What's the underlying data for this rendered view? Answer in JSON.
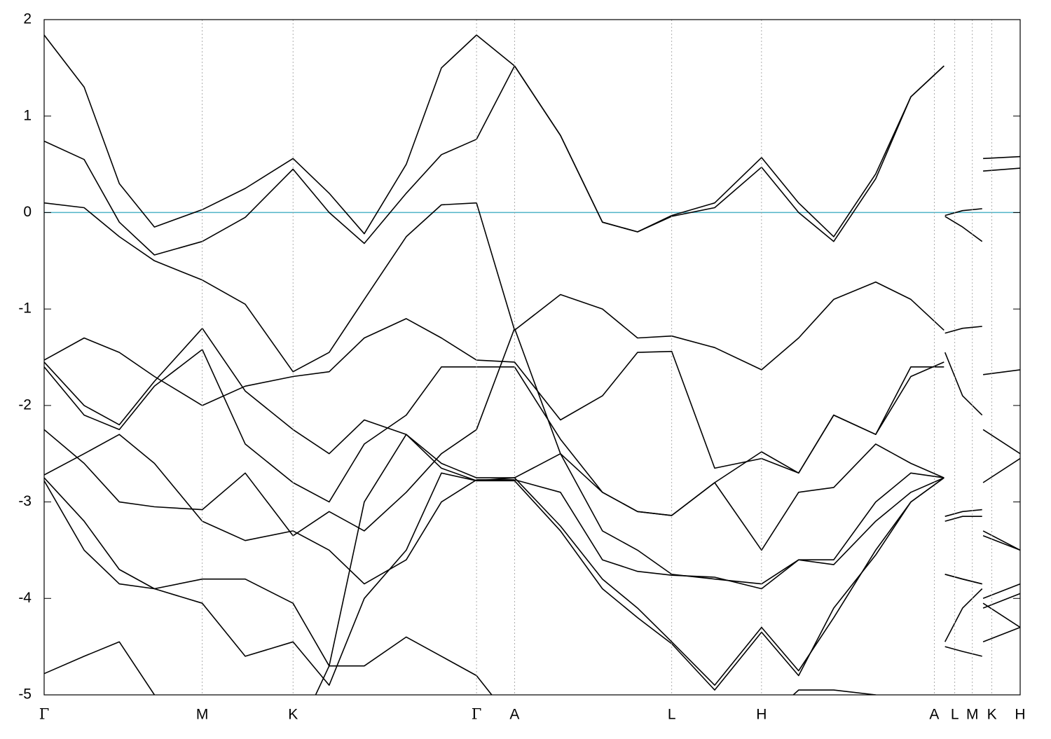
{
  "chart_data": {
    "type": "line",
    "x": [
      0,
      4.1,
      7.7,
      11.3,
      16.2,
      20.6,
      25.5,
      29.2,
      32.8,
      37.1,
      40.7,
      44.3,
      48.2,
      52.9,
      57.2,
      60.8,
      64.3,
      68.7,
      73.5,
      77.3,
      80.9,
      85.2,
      88.8,
      92.2,
      92.2,
      92.3,
      94.1,
      96.1,
      96.2,
      96.2,
      100
    ],
    "series": [
      {
        "color": "#000000",
        "values": [
          1.84,
          1.3,
          0.3,
          -0.15,
          0.03,
          0.25,
          0.56,
          0.2,
          -0.22,
          0.5,
          1.5,
          1.84,
          1.52,
          0.8,
          -0.1,
          -0.2,
          -0.03,
          0.1,
          0.57,
          0.1,
          -0.25,
          0.4,
          1.2,
          1.52,
          null,
          -0.03,
          0.02,
          0.04,
          null,
          0.56,
          0.58
        ]
      },
      {
        "color": "#000000",
        "values": [
          0.74,
          0.55,
          -0.1,
          -0.44,
          -0.3,
          -0.05,
          0.45,
          0.0,
          -0.32,
          0.2,
          0.6,
          0.76,
          1.52,
          0.8,
          -0.1,
          -0.2,
          -0.04,
          0.05,
          0.47,
          0.0,
          -0.3,
          0.35,
          1.2,
          1.52,
          null,
          -0.04,
          -0.15,
          -0.3,
          null,
          0.43,
          0.46
        ]
      },
      {
        "color": "#000000",
        "values": [
          0.1,
          0.05,
          -0.25,
          -0.5,
          -0.7,
          -0.95,
          -1.65,
          -1.45,
          -0.9,
          -0.25,
          0.08,
          0.1,
          -1.22,
          -0.85,
          -1.0,
          -1.3,
          -1.28,
          -1.4,
          -1.63,
          -1.3,
          -0.9,
          -0.72,
          -0.9,
          -1.22,
          null,
          -1.25,
          -1.2,
          -1.18,
          null,
          -1.68,
          -1.63
        ]
      },
      {
        "color": "#000000",
        "values": [
          -1.53,
          -1.3,
          -1.45,
          -1.7,
          -2.0,
          -1.8,
          -1.7,
          -1.65,
          -1.3,
          -1.1,
          -1.3,
          -1.53,
          -1.55,
          -2.15,
          -1.9,
          -1.45,
          -1.44,
          -2.65,
          -2.55,
          -2.7,
          -2.1,
          -2.3,
          -1.7,
          -1.55,
          null,
          -1.45,
          -1.9,
          -2.1,
          null,
          -2.25,
          -2.5
        ]
      },
      {
        "color": "#000000",
        "values": [
          -1.55,
          -2.0,
          -2.2,
          -1.75,
          -1.2,
          -1.85,
          -2.25,
          -2.5,
          -2.15,
          -2.3,
          -2.6,
          -2.75,
          -2.75,
          -2.5,
          -2.9,
          -3.1,
          -3.14,
          -2.8,
          -3.5,
          -2.9,
          -2.85,
          -2.4,
          -2.6,
          -2.75,
          null,
          -3.15,
          -3.1,
          -3.08,
          null,
          -2.8,
          -2.55
        ]
      },
      {
        "color": "#000000",
        "values": [
          -1.6,
          -2.1,
          -2.25,
          -1.8,
          -1.42,
          -2.4,
          -2.8,
          -3.0,
          -2.4,
          -2.1,
          -1.6,
          -1.6,
          -1.6,
          -2.35,
          -2.9,
          -3.1,
          -3.14,
          -2.8,
          -2.48,
          -2.7,
          -2.1,
          -2.3,
          -1.6,
          -1.6,
          null,
          -3.2,
          -3.15,
          -3.15,
          null,
          -3.3,
          -3.5
        ]
      },
      {
        "color": "#000000",
        "values": [
          -2.25,
          -2.6,
          -3.0,
          -3.05,
          -3.08,
          -2.7,
          -3.35,
          -3.1,
          -3.3,
          -2.9,
          -2.5,
          -2.25,
          -1.2,
          -2.5,
          -3.3,
          -3.5,
          -3.75,
          -3.8,
          -3.85,
          -3.6,
          -3.6,
          -3.0,
          -2.7,
          -2.75,
          null,
          -3.75,
          -3.8,
          -3.85,
          null,
          -3.35,
          -3.5
        ]
      },
      {
        "color": "#000000",
        "values": [
          -2.75,
          -3.2,
          -3.7,
          -3.9,
          -3.8,
          -3.8,
          -4.05,
          -4.7,
          -3.0,
          -2.3,
          -2.65,
          -2.78,
          -2.75,
          -3.25,
          -3.8,
          -4.1,
          -4.45,
          -4.9,
          -4.3,
          -4.75,
          -4.2,
          -3.5,
          -3.0,
          -2.75,
          null,
          -4.45,
          -4.1,
          -3.9,
          null,
          -4.0,
          -3.85
        ]
      },
      {
        "color": "#000000",
        "values": [
          -2.78,
          -3.5,
          -3.85,
          -3.9,
          -4.05,
          -4.6,
          -4.45,
          -4.9,
          -4.0,
          -3.5,
          -2.7,
          -2.78,
          -2.78,
          -3.3,
          -3.9,
          -4.2,
          -4.47,
          -4.95,
          -4.35,
          -4.8,
          -4.1,
          -3.55,
          -3.0,
          -2.75,
          null,
          -4.5,
          -4.55,
          -4.6,
          null,
          -4.05,
          -4.3
        ]
      },
      {
        "color": "#000000",
        "values": [
          -4.78,
          -4.6,
          -4.45,
          -5.0,
          -5.3,
          -5.4,
          -5.5,
          -4.7,
          -4.7,
          -4.4,
          -4.6,
          -4.8,
          -5.3,
          -5.3,
          -5.1,
          -5.2,
          -5.3,
          -5.1,
          -5.3,
          -4.95,
          -4.95,
          -5.0,
          -5.3,
          -5.4,
          null,
          -5.3,
          -5.3,
          -5.3,
          null,
          -4.45,
          -4.3
        ]
      },
      {
        "color": "#000000",
        "values": [
          -2.72,
          -2.5,
          -2.3,
          -2.6,
          -3.2,
          -3.4,
          -3.3,
          -3.5,
          -3.85,
          -3.6,
          -3.0,
          -2.77,
          -2.77,
          -2.9,
          -3.6,
          -3.72,
          -3.76,
          -3.78,
          -3.9,
          -3.6,
          -3.65,
          -3.2,
          -2.9,
          -2.75,
          null,
          -3.75,
          -3.8,
          -3.85,
          null,
          -4.1,
          -3.95
        ]
      }
    ],
    "xlim": [
      0,
      100
    ],
    "xticks": [
      {
        "value": 0,
        "label": "Γ"
      },
      {
        "value": 16.2,
        "label": "M"
      },
      {
        "value": 25.5,
        "label": "K"
      },
      {
        "value": 44.3,
        "label": "Γ"
      },
      {
        "value": 48.2,
        "label": "A"
      },
      {
        "value": 64.3,
        "label": "L"
      },
      {
        "value": 73.5,
        "label": "H"
      },
      {
        "value": 91.2,
        "label": "A"
      },
      {
        "value": 93.3,
        "label": "L"
      },
      {
        "value": 95.1,
        "label": "M"
      },
      {
        "value": 97.1,
        "label": "K"
      },
      {
        "value": 100,
        "label": "H"
      }
    ],
    "ylim": [
      -5,
      2
    ],
    "yticks": [
      -5,
      -4,
      -3,
      -2,
      -1,
      0,
      1,
      2
    ],
    "fermi_level": 0,
    "fermi_color": "#4fb3c8",
    "grid": true
  }
}
